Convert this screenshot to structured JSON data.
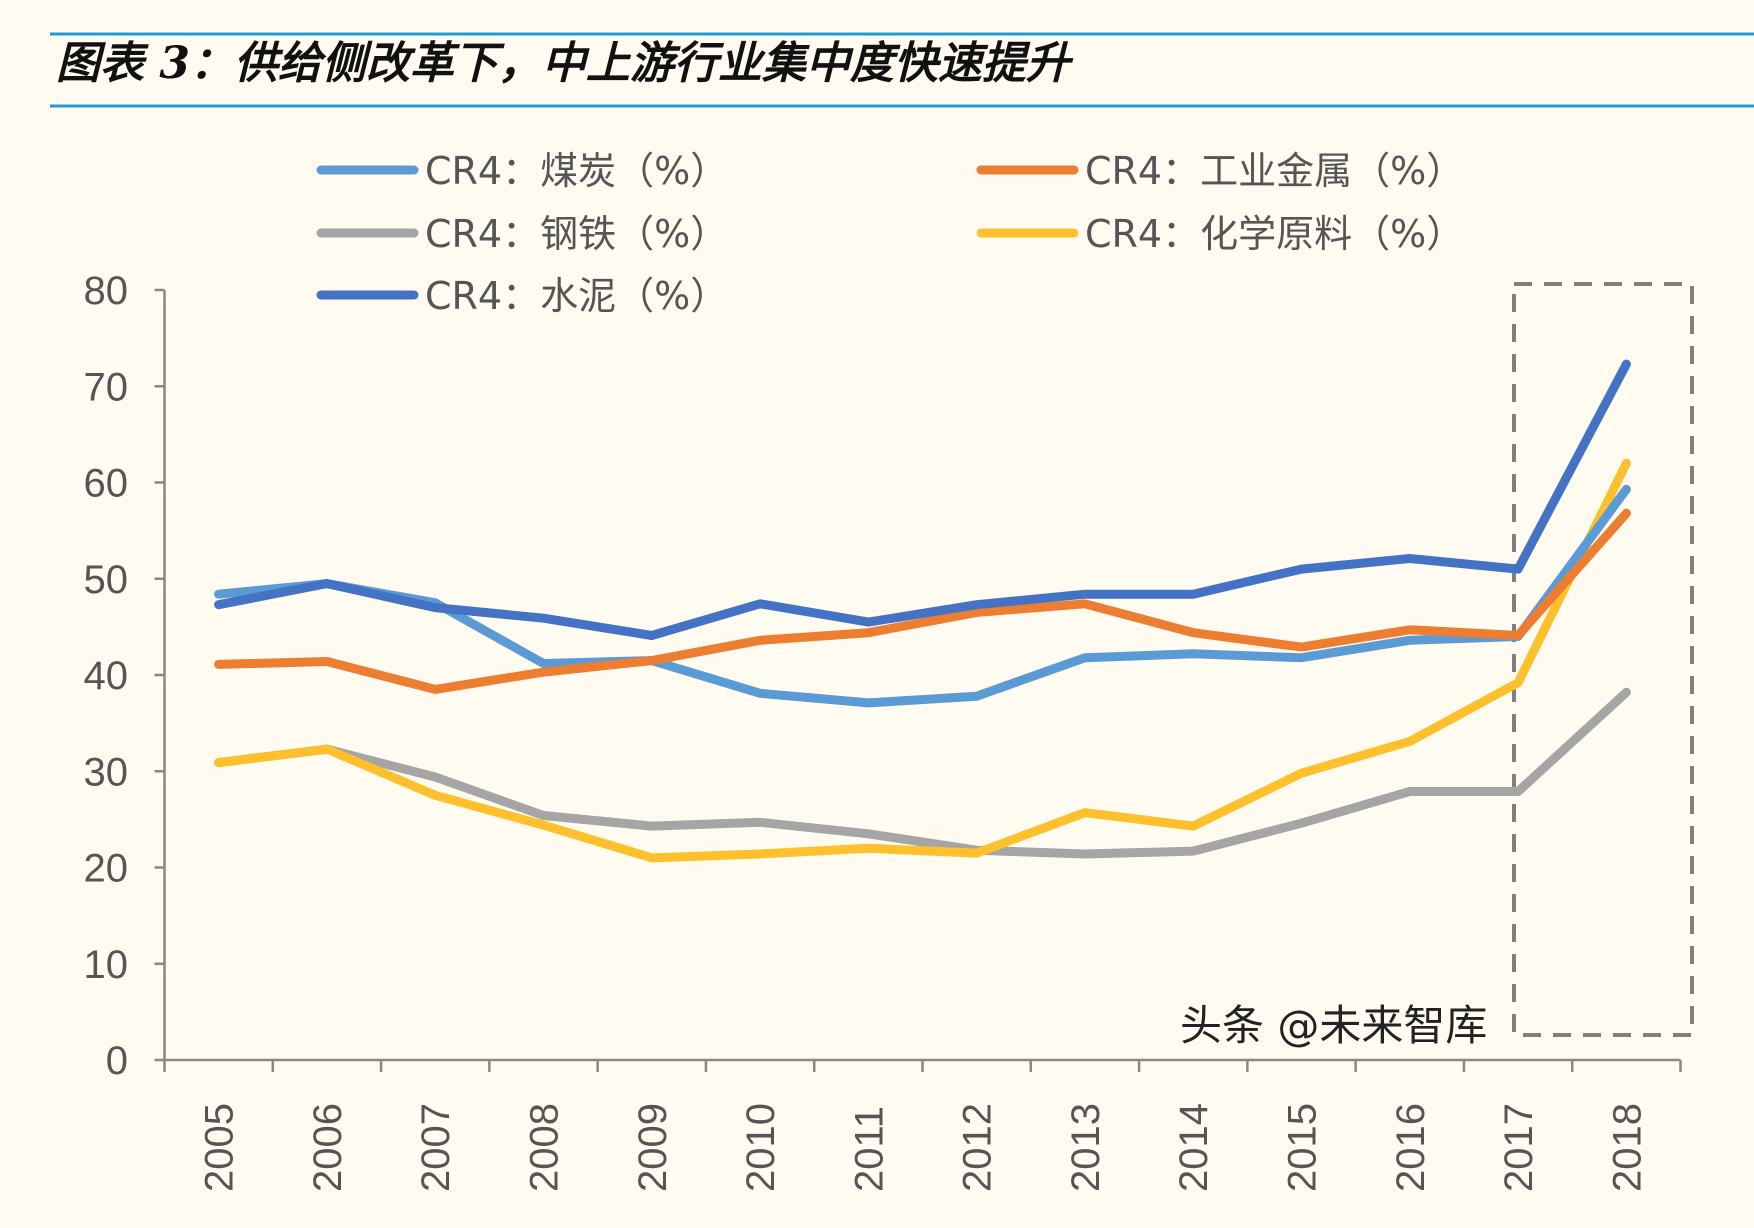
{
  "title": "图表 3：供给侧改革下，中上游行业集中度快速提升",
  "watermark": "头条 @未来智库",
  "colors": {
    "title_rule": "#1E9BD7",
    "background": "#FFFBF1",
    "axis": "#888888",
    "highlight_box": "#7F7F7F"
  },
  "chart_data": {
    "type": "line",
    "title": "图表 3：供给侧改革下，中上游行业集中度快速提升",
    "xlabel": "",
    "ylabel": "",
    "ylim": [
      0,
      80
    ],
    "yticks": [
      "0",
      "10",
      "20",
      "30",
      "40",
      "50",
      "60",
      "70",
      "80"
    ],
    "categories": [
      "2005",
      "2006",
      "2007",
      "2008",
      "2009",
      "2010",
      "2011",
      "2012",
      "2013",
      "2014",
      "2015",
      "2016",
      "2017",
      "2018"
    ],
    "grid": false,
    "legend_placement": "top",
    "highlight": {
      "from": "2017",
      "to": "2018",
      "style": "dashed-box"
    },
    "series": [
      {
        "name": "CR4：煤炭（%）",
        "color": "#5B9BD5",
        "values": [
          48.4,
          49.5,
          47.5,
          41.2,
          41.5,
          38.1,
          37.1,
          37.8,
          41.8,
          42.2,
          41.8,
          43.6,
          44.0,
          59.3
        ]
      },
      {
        "name": "CR4：工业金属（%）",
        "color": "#ED7D31",
        "values": [
          41.1,
          41.4,
          38.5,
          40.3,
          41.5,
          43.6,
          44.4,
          46.5,
          47.4,
          44.4,
          42.9,
          44.7,
          44.1,
          56.8
        ]
      },
      {
        "name": "CR4：钢铁（%）",
        "color": "#A5A5A5",
        "values": [
          30.9,
          32.3,
          29.4,
          25.4,
          24.3,
          24.7,
          23.5,
          21.8,
          21.4,
          21.7,
          24.6,
          27.9,
          27.9,
          38.2
        ]
      },
      {
        "name": "CR4：化学原料（%）",
        "color": "#FFC02D",
        "values": [
          30.9,
          32.3,
          27.5,
          24.4,
          21.0,
          21.4,
          22.0,
          21.5,
          25.7,
          24.3,
          29.8,
          33.1,
          39.2,
          62.0
        ]
      },
      {
        "name": "CR4：水泥（%）",
        "color": "#4472C4",
        "values": [
          47.3,
          49.5,
          47.0,
          45.9,
          44.1,
          47.4,
          45.5,
          47.3,
          48.4,
          48.4,
          51.0,
          52.1,
          51.0,
          72.3
        ]
      }
    ]
  }
}
